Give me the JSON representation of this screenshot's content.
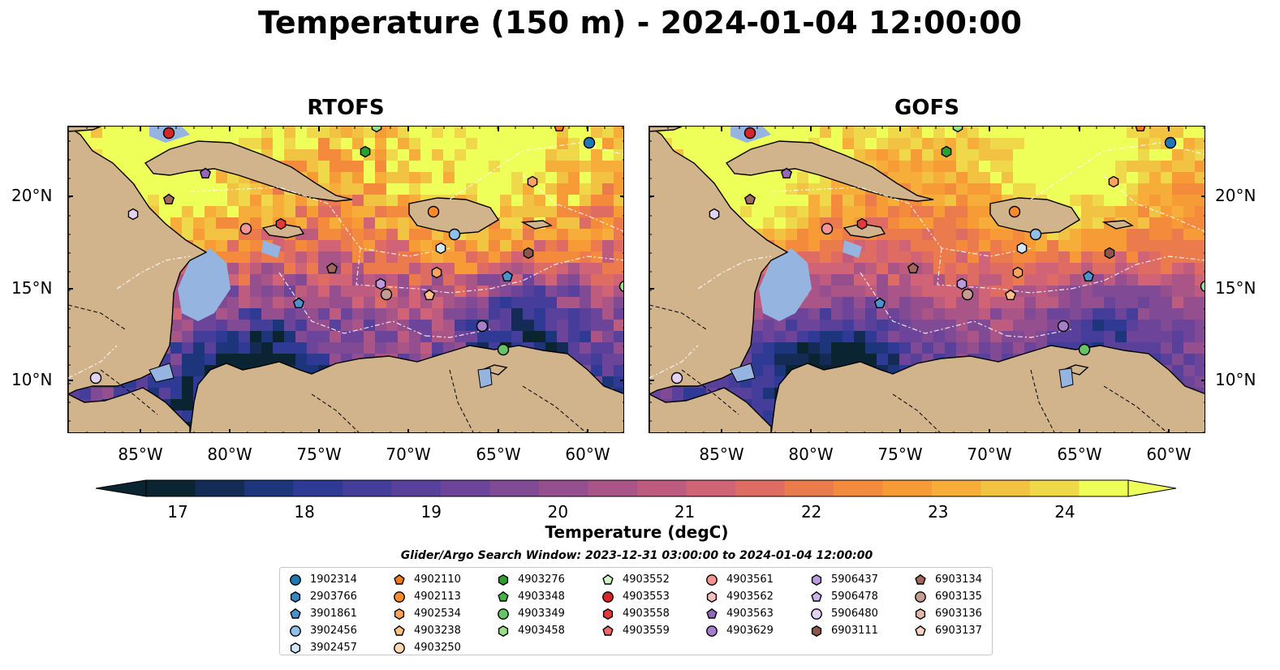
{
  "title": "Temperature (150 m) - 2024-01-04 12:00:00",
  "panels": [
    {
      "title": "RTOFS"
    },
    {
      "title": "GOFS"
    }
  ],
  "lat_ticks": [
    "20°N",
    "15°N",
    "10°N"
  ],
  "lon_ticks": [
    "85°W",
    "80°W",
    "75°W",
    "70°W",
    "65°W",
    "60°W"
  ],
  "colorbar": {
    "label": "Temperature (degC)",
    "ticks": [
      "17",
      "18",
      "19",
      "20",
      "21",
      "22",
      "23",
      "24"
    ],
    "min": 16.75,
    "max": 24.5,
    "colors": [
      "#0b2431",
      "#142c55",
      "#1d357a",
      "#2e3a93",
      "#453d9a",
      "#59409b",
      "#6c4499",
      "#804a95",
      "#954f8e",
      "#aa5587",
      "#bd5c7f",
      "#d06375",
      "#df6c63",
      "#eb7a4c",
      "#f38a3c",
      "#f79b37",
      "#f6ad3a",
      "#f2c242",
      "#efd84a",
      "#efff5a"
    ]
  },
  "legend": {
    "title": "Glider/Argo Search Window: 2023-12-31 03:00:00 to 2024-01-04 12:00:00",
    "columns": [
      [
        {
          "id": "1902314",
          "marker": "circle",
          "color": "#1f77b4"
        },
        {
          "id": "2903766",
          "marker": "hexagon",
          "color": "#3a84c0"
        },
        {
          "id": "3901861",
          "marker": "pentagon",
          "color": "#4a93cf"
        },
        {
          "id": "3902456",
          "marker": "circle",
          "color": "#8fc0ea"
        },
        {
          "id": "3902457",
          "marker": "hexagon",
          "color": "#d2e7f8"
        }
      ],
      [
        {
          "id": "4902110",
          "marker": "pentagon",
          "color": "#f57a1a"
        },
        {
          "id": "4902113",
          "marker": "circle",
          "color": "#fb8b2a"
        },
        {
          "id": "4902534",
          "marker": "hexagon",
          "color": "#fda35c"
        },
        {
          "id": "4903238",
          "marker": "pentagon",
          "color": "#fcbf8a"
        },
        {
          "id": "4903250",
          "marker": "circle",
          "color": "#fdd6b0"
        }
      ],
      [
        {
          "id": "4903276",
          "marker": "hexagon",
          "color": "#2ca02c"
        },
        {
          "id": "4903348",
          "marker": "pentagon",
          "color": "#45b245"
        },
        {
          "id": "4903349",
          "marker": "circle",
          "color": "#66c466"
        },
        {
          "id": "4903458",
          "marker": "hexagon",
          "color": "#98df8a"
        }
      ],
      [
        {
          "id": "4903552",
          "marker": "pentagon",
          "color": "#d2f5c6"
        },
        {
          "id": "4903553",
          "marker": "circle",
          "color": "#d62728"
        },
        {
          "id": "4903558",
          "marker": "hexagon",
          "color": "#e03a3b"
        },
        {
          "id": "4903559",
          "marker": "pentagon",
          "color": "#e86a6a"
        }
      ],
      [
        {
          "id": "4903561",
          "marker": "circle",
          "color": "#f39592"
        },
        {
          "id": "4903562",
          "marker": "hexagon",
          "color": "#f7bfbd"
        },
        {
          "id": "4903563",
          "marker": "pentagon",
          "color": "#9467bd"
        },
        {
          "id": "4903629",
          "marker": "circle",
          "color": "#a67fcc"
        }
      ],
      [
        {
          "id": "5906437",
          "marker": "hexagon",
          "color": "#bb9bdc"
        },
        {
          "id": "5906478",
          "marker": "pentagon",
          "color": "#cdb4e6"
        },
        {
          "id": "5906480",
          "marker": "circle",
          "color": "#e4d2f2"
        },
        {
          "id": "6903111",
          "marker": "hexagon",
          "color": "#8c564b"
        }
      ],
      [
        {
          "id": "6903134",
          "marker": "pentagon",
          "color": "#a0685c"
        },
        {
          "id": "6903135",
          "marker": "circle",
          "color": "#c49c94"
        },
        {
          "id": "6903136",
          "marker": "hexagon",
          "color": "#e3b9aa"
        },
        {
          "id": "6903137",
          "marker": "pentagon",
          "color": "#f7d3c6"
        }
      ]
    ]
  },
  "colors": {
    "land": "#d2b48c",
    "shelf": "#95b4df",
    "coast": "#000000"
  }
}
